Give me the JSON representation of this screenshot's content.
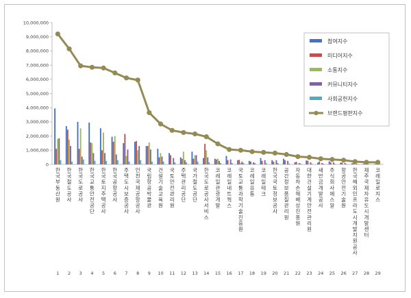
{
  "chart_data": {
    "type": "bar",
    "title": "",
    "xlabel": "",
    "ylabel": "",
    "ylim": [
      0,
      10000000
    ],
    "yticks": [
      "0",
      "1,000,000",
      "2,000,000",
      "3,000,000",
      "4,000,000",
      "5,000,000",
      "6,000,000",
      "7,000,000",
      "8,000,000",
      "9,000,000",
      "10,000,000"
    ],
    "grid": false,
    "legend_position": "top-right",
    "categories": [
      "한국부동산원",
      "한국철도공사",
      "한국도로공사",
      "한국교통안전공단",
      "한국토지주택공사",
      "한국공항공사",
      "주택도시보증공사",
      "인천국제공항공사",
      "국립항공박물관",
      "건설기술교육원",
      "국토안전관리원",
      "주택관리공단",
      "국가철도공단",
      "한국도로공사서비스",
      "코레일관광개발",
      "코레일네트웍스",
      "국토교통과학기술진흥원",
      "코레일유통",
      "코레일테크",
      "한국국토정보공사",
      "공간정보품질관리원",
      "자동차손해배상진흥원",
      "대한건설기계안전관리원",
      "새만금개발공사",
      "주식회사에스알",
      "항공안전기술원",
      "한국해외인프라도시개발지원공사",
      "제주국제자유도시개발센터",
      "코레일로지스"
    ],
    "category_numbers": [
      "1",
      "2",
      "3",
      "4",
      "5",
      "6",
      "7",
      "8",
      "9",
      "10",
      "11",
      "12",
      "13",
      "14",
      "15",
      "16",
      "17",
      "18",
      "19",
      "20",
      "21",
      "22",
      "23",
      "24",
      "25",
      "26",
      "27",
      "28",
      "29"
    ],
    "series": [
      {
        "name": "참여지수",
        "kind": "bar",
        "color": "#4472c4",
        "values": [
          3950000,
          2700000,
          3000000,
          2950000,
          2550000,
          1950000,
          1500000,
          1600000,
          1300000,
          1100000,
          800000,
          500000,
          900000,
          450000,
          400000,
          600000,
          300000,
          250000,
          450000,
          300000,
          400000,
          150000,
          280000,
          120000,
          220000,
          130000,
          80000,
          60000,
          40000
        ]
      },
      {
        "name": "미디어지수",
        "kind": "bar",
        "color": "#c0504d",
        "values": [
          1100000,
          2450000,
          1100000,
          1550000,
          1000000,
          1600000,
          2150000,
          1650000,
          1300000,
          500000,
          650000,
          400000,
          400000,
          1450000,
          350000,
          300000,
          320000,
          200000,
          250000,
          200000,
          300000,
          180000,
          260000,
          200000,
          150000,
          120000,
          80000,
          60000,
          50000
        ]
      },
      {
        "name": "소통지수",
        "kind": "bar",
        "color": "#9bbb59",
        "values": [
          1800000,
          1750000,
          2550000,
          1500000,
          2250000,
          2000000,
          600000,
          1000000,
          1550000,
          800000,
          0,
          900000,
          650000,
          1000000,
          400000,
          0,
          100000,
          0,
          0,
          0,
          0,
          0,
          0,
          0,
          0,
          0,
          0,
          0,
          0
        ]
      },
      {
        "name": "커뮤니티지수",
        "kind": "bar",
        "color": "#8064a2",
        "values": [
          1850000,
          1300000,
          550000,
          800000,
          800000,
          700000,
          1050000,
          1300000,
          1050000,
          550000,
          450000,
          300000,
          650000,
          500000,
          250000,
          350000,
          200000,
          150000,
          300000,
          300000,
          250000,
          100000,
          150000,
          100000,
          150000,
          100000,
          50000,
          30000,
          80000
        ]
      },
      {
        "name": "사회공헌지수",
        "kind": "bar",
        "color": "#4bacc6",
        "values": [
          300000,
          200000,
          350000,
          250000,
          250000,
          300000,
          200000,
          300000,
          200000,
          200000,
          150000,
          150000,
          200000,
          150000,
          100000,
          100000,
          100000,
          100000,
          80000,
          100000,
          60000,
          60000,
          50000,
          50000,
          40000,
          40000,
          30000,
          20000,
          20000
        ]
      },
      {
        "name": "브랜드평판지수",
        "kind": "line",
        "color": "#948a54",
        "values": [
          9200000,
          8150000,
          6950000,
          6850000,
          6800000,
          6450000,
          6100000,
          5950000,
          3650000,
          2850000,
          2400000,
          2250000,
          2150000,
          1950000,
          1450000,
          1050000,
          1000000,
          900000,
          850000,
          800000,
          700000,
          550000,
          500000,
          400000,
          350000,
          300000,
          200000,
          150000,
          150000
        ]
      }
    ]
  }
}
